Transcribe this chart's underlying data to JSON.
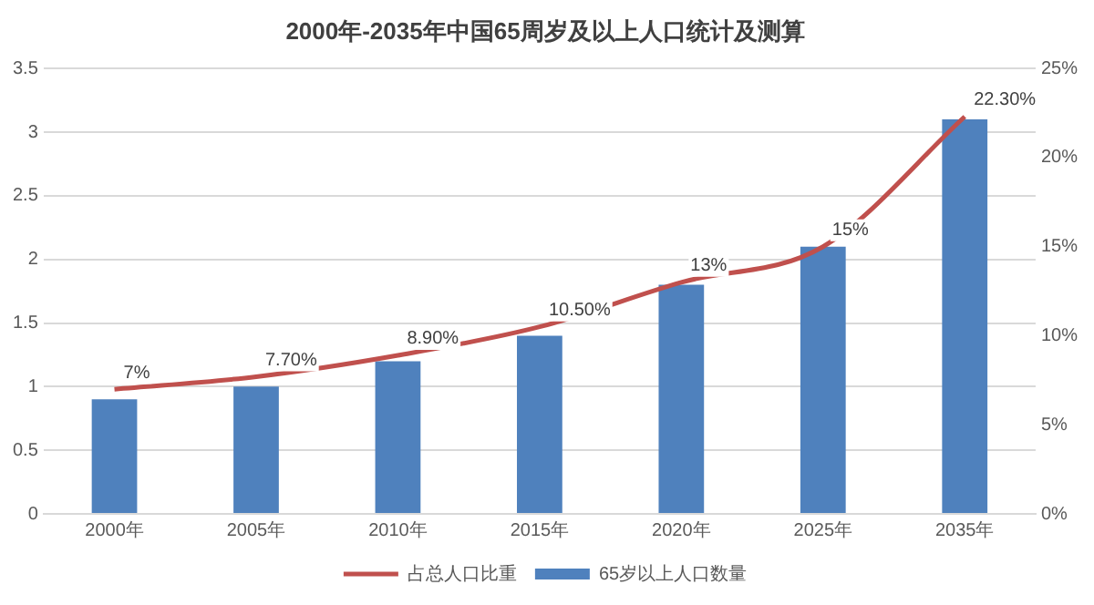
{
  "chart_data": {
    "type": "bar",
    "title": "2000年-2035年中国65周岁及以上人口统计及测算",
    "categories": [
      "2000年",
      "2005年",
      "2010年",
      "2015年",
      "2020年",
      "2025年",
      "2035年"
    ],
    "series": [
      {
        "name": "65岁以上人口数量",
        "color": "#4f81bd",
        "values": [
          0.9,
          1.0,
          1.2,
          1.4,
          1.8,
          2.1,
          3.1
        ]
      },
      {
        "name": "占总人口比重",
        "type": "line",
        "axis": "y2",
        "color": "#c0504d",
        "marker": "none",
        "line_style": "solid",
        "values": [
          7,
          7.7,
          8.9,
          10.5,
          13,
          15,
          22.3
        ],
        "value_labels": [
          "7%",
          "7.70%",
          "8.90%",
          "10.50%",
          "13%",
          "15%",
          "22.30%"
        ]
      }
    ],
    "ylim": [
      0,
      3.5
    ],
    "yticks": [
      0,
      0.5,
      1,
      1.5,
      2,
      2.5,
      3,
      3.5
    ],
    "y2lim": [
      0,
      25
    ],
    "y2ticks": [
      {
        "value": 0,
        "label": "0%"
      },
      {
        "value": 5,
        "label": "5%"
      },
      {
        "value": 10,
        "label": "10%"
      },
      {
        "value": 15,
        "label": "15%"
      },
      {
        "value": 20,
        "label": "20%"
      },
      {
        "value": 25,
        "label": "25%"
      }
    ],
    "grid": "y",
    "legend": "bottom"
  }
}
